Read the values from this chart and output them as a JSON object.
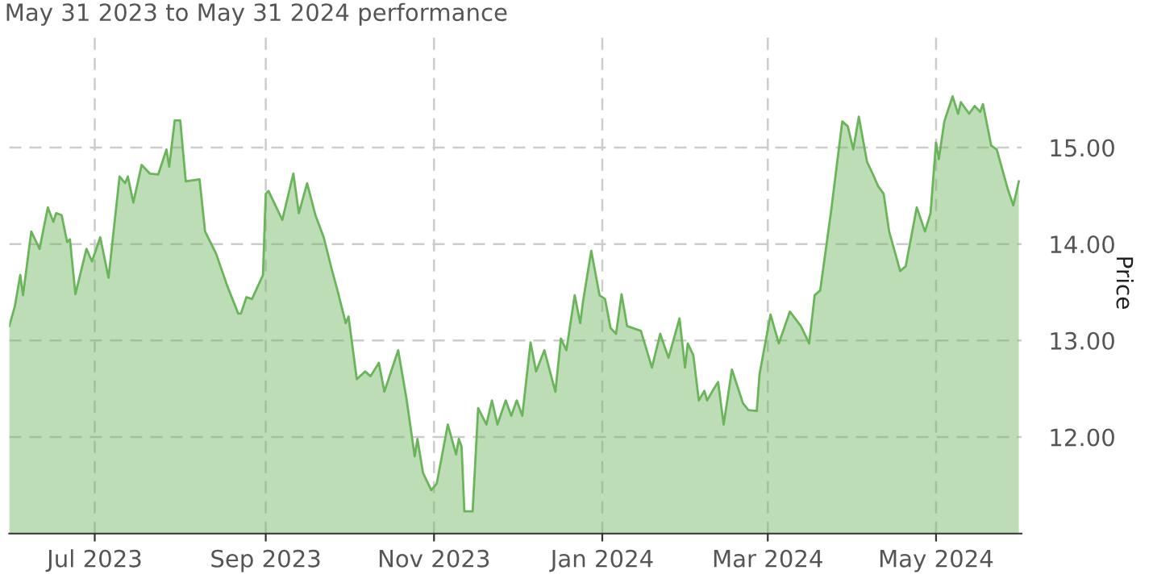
{
  "chart_data": {
    "type": "area",
    "title": "May 31 2023 to May 31 2024 performance",
    "y2label": "Price",
    "x": [
      "2023-05-31",
      "2023-06-02",
      "2023-06-04",
      "2023-06-05",
      "2023-06-08",
      "2023-06-11",
      "2023-06-14",
      "2023-06-16",
      "2023-06-17",
      "2023-06-19",
      "2023-06-21",
      "2023-06-22",
      "2023-06-24",
      "2023-06-28",
      "2023-06-30",
      "2023-07-03",
      "2023-07-06",
      "2023-07-10",
      "2023-07-12",
      "2023-07-13",
      "2023-07-15",
      "2023-07-18",
      "2023-07-21",
      "2023-07-24",
      "2023-07-27",
      "2023-07-28",
      "2023-07-30",
      "2023-08-01",
      "2023-08-03",
      "2023-08-08",
      "2023-08-10",
      "2023-08-14",
      "2023-08-18",
      "2023-08-22",
      "2023-08-23",
      "2023-08-25",
      "2023-08-27",
      "2023-08-31",
      "2023-09-01",
      "2023-09-02",
      "2023-09-07",
      "2023-09-11",
      "2023-09-13",
      "2023-09-16",
      "2023-09-19",
      "2023-09-22",
      "2023-09-25",
      "2023-09-27",
      "2023-09-30",
      "2023-10-01",
      "2023-10-04",
      "2023-10-07",
      "2023-10-09",
      "2023-10-12",
      "2023-10-14",
      "2023-10-19",
      "2023-10-22",
      "2023-10-25",
      "2023-10-26",
      "2023-10-28",
      "2023-10-31",
      "2023-11-02",
      "2023-11-06",
      "2023-11-09",
      "2023-11-10",
      "2023-11-11",
      "2023-11-12",
      "2023-11-15",
      "2023-11-17",
      "2023-11-20",
      "2023-11-22",
      "2023-11-24",
      "2023-11-27",
      "2023-11-29",
      "2023-12-01",
      "2023-12-03",
      "2023-12-06",
      "2023-12-08",
      "2023-12-11",
      "2023-12-15",
      "2023-12-17",
      "2023-12-19",
      "2023-12-22",
      "2023-12-24",
      "2023-12-25",
      "2023-12-28",
      "2023-12-31",
      "2024-01-02",
      "2024-01-04",
      "2024-01-06",
      "2024-01-08",
      "2024-01-10",
      "2024-01-15",
      "2024-01-19",
      "2024-01-22",
      "2024-01-25",
      "2024-01-29",
      "2024-01-31",
      "2024-02-01",
      "2024-02-03",
      "2024-02-05",
      "2024-02-07",
      "2024-02-08",
      "2024-02-10",
      "2024-02-12",
      "2024-02-14",
      "2024-02-17",
      "2024-02-21",
      "2024-02-23",
      "2024-02-26",
      "2024-02-27",
      "2024-03-02",
      "2024-03-05",
      "2024-03-09",
      "2024-03-13",
      "2024-03-16",
      "2024-03-18",
      "2024-03-20",
      "2024-03-24",
      "2024-03-28",
      "2024-03-30",
      "2024-04-01",
      "2024-04-03",
      "2024-04-06",
      "2024-04-08",
      "2024-04-10",
      "2024-04-12",
      "2024-04-14",
      "2024-04-18",
      "2024-04-20",
      "2024-04-24",
      "2024-04-27",
      "2024-04-29",
      "2024-05-01",
      "2024-05-02",
      "2024-05-04",
      "2024-05-07",
      "2024-05-09",
      "2024-05-10",
      "2024-05-13",
      "2024-05-15",
      "2024-05-17",
      "2024-05-18",
      "2024-05-21",
      "2024-05-23",
      "2024-05-27",
      "2024-05-29",
      "2024-05-30",
      "2024-05-31"
    ],
    "series": [
      {
        "color": "#6ab45a",
        "axis": "y2",
        "values": [
          13.15,
          13.35,
          13.68,
          13.47,
          14.13,
          13.95,
          14.38,
          14.23,
          14.32,
          14.3,
          14.02,
          14.05,
          13.48,
          13.95,
          13.82,
          14.07,
          13.65,
          14.7,
          14.63,
          14.7,
          14.43,
          14.82,
          14.73,
          14.72,
          14.98,
          14.8,
          15.28,
          15.28,
          14.65,
          14.67,
          14.13,
          13.9,
          13.57,
          13.28,
          13.28,
          13.45,
          13.43,
          13.68,
          14.52,
          14.55,
          14.25,
          14.73,
          14.32,
          14.63,
          14.3,
          14.07,
          13.73,
          13.52,
          13.18,
          13.25,
          12.6,
          12.68,
          12.63,
          12.77,
          12.47,
          12.9,
          12.4,
          11.8,
          11.98,
          11.63,
          11.45,
          11.52,
          12.13,
          11.82,
          11.98,
          11.9,
          11.23,
          11.23,
          12.3,
          12.13,
          12.38,
          12.13,
          12.38,
          12.22,
          12.38,
          12.22,
          12.98,
          12.68,
          12.9,
          12.47,
          13.02,
          12.9,
          13.47,
          13.18,
          13.4,
          13.93,
          13.47,
          13.43,
          13.13,
          13.07,
          13.48,
          13.15,
          13.1,
          12.72,
          13.07,
          12.82,
          13.23,
          12.72,
          12.97,
          12.85,
          12.38,
          12.48,
          12.38,
          12.48,
          12.57,
          12.13,
          12.7,
          12.35,
          12.28,
          12.27,
          12.65,
          13.27,
          12.97,
          13.3,
          13.15,
          12.97,
          13.47,
          13.52,
          14.35,
          15.27,
          15.22,
          14.98,
          15.32,
          14.85,
          14.73,
          14.6,
          14.52,
          14.13,
          13.72,
          13.77,
          14.38,
          14.13,
          14.32,
          15.05,
          14.88,
          15.27,
          15.53,
          15.35,
          15.47,
          15.35,
          15.43,
          15.37,
          15.45,
          15.02,
          14.98,
          14.57,
          14.4,
          14.52,
          14.65
        ]
      }
    ],
    "xlim": [
      "2023-05-31",
      "2024-06-01"
    ],
    "xticks": [
      {
        "value": "2023-07-01",
        "label": "Jul 2023"
      },
      {
        "value": "2023-09-01",
        "label": "Sep 2023"
      },
      {
        "value": "2023-11-01",
        "label": "Nov 2023"
      },
      {
        "value": "2024-01-01",
        "label": "Jan 2024"
      },
      {
        "value": "2024-03-01",
        "label": "Mar 2024"
      },
      {
        "value": "2024-05-01",
        "label": "May 2024"
      }
    ],
    "y2lim": [
      11.0,
      16.2
    ],
    "y2ticks": [
      {
        "value": 12,
        "label": "12.00"
      },
      {
        "value": 13,
        "label": "13.00"
      },
      {
        "value": 14,
        "label": "14.00"
      },
      {
        "value": 15,
        "label": "15.00"
      }
    ],
    "grid": true,
    "legend": false
  }
}
